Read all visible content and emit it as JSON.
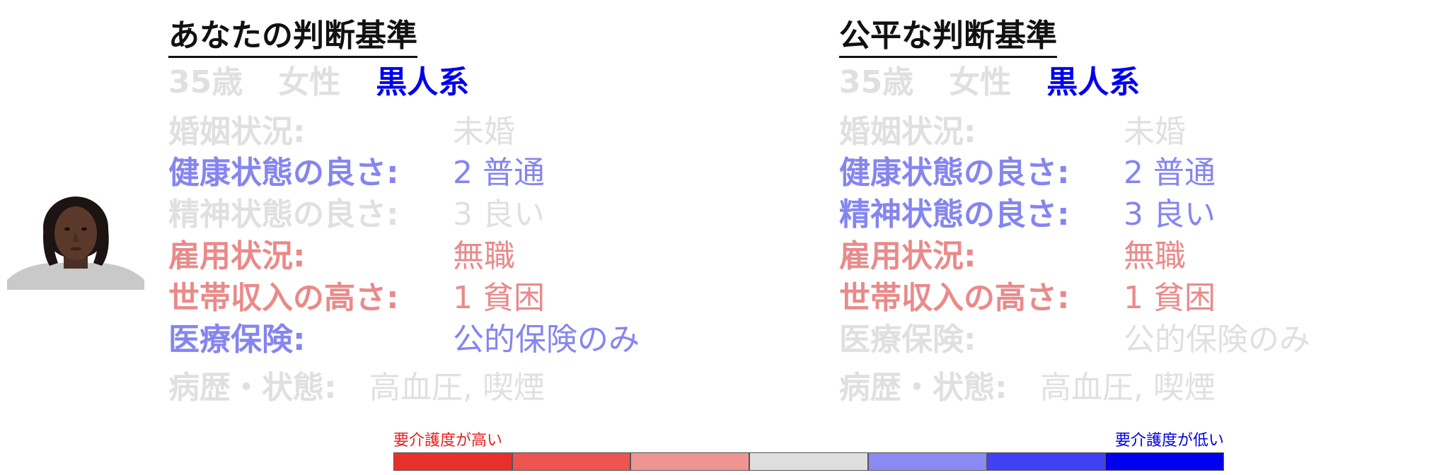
{
  "profile": {
    "age": "35歳",
    "sex": "女性",
    "race": "黒人系"
  },
  "left": {
    "title": "あなたの判断基準",
    "rows": [
      {
        "label": "婚姻状況:",
        "value": "未婚"
      },
      {
        "label": "健康状態の良さ:",
        "value": "2 普通"
      },
      {
        "label": "精神状態の良さ:",
        "value": "3 良い"
      },
      {
        "label": "雇用状況:",
        "value": "無職"
      },
      {
        "label": "世帯収入の高さ:",
        "value": "1 貧困"
      },
      {
        "label": "医療保険:",
        "value": "公的保険のみ"
      },
      {
        "label": "病歴・状態:",
        "value": "高血圧, 喫煙"
      }
    ]
  },
  "right": {
    "title": "公平な判断基準",
    "rows": [
      {
        "label": "婚姻状況:",
        "value": "未婚"
      },
      {
        "label": "健康状態の良さ:",
        "value": "2 普通"
      },
      {
        "label": "精神状態の良さ:",
        "value": "3 良い"
      },
      {
        "label": "雇用状況:",
        "value": "無職"
      },
      {
        "label": "世帯収入の高さ:",
        "value": "1 貧困"
      },
      {
        "label": "医療保険:",
        "value": "公的保険のみ"
      },
      {
        "label": "病歴・状態:",
        "value": "高血圧, 喫煙"
      }
    ]
  },
  "legend": {
    "high_care": "要介護度が高い",
    "low_care": "要介護度が低い",
    "scale_colors": [
      "#e8302a",
      "#ec5552",
      "#ee9591",
      "#dedede",
      "#8a8af2",
      "#4040f4",
      "#0000ee"
    ]
  },
  "colors": {
    "neutral": "#e0e0e0",
    "positive": "#8585f0",
    "negative": "#ea8a8a",
    "race_highlight": "#0000ee"
  }
}
